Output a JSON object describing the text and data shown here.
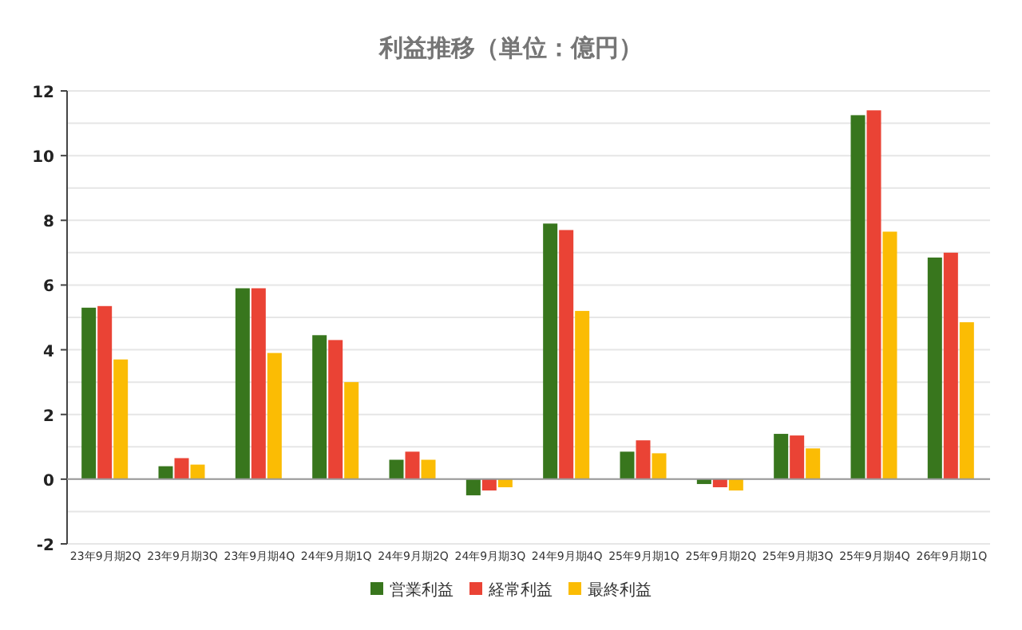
{
  "chart_data": {
    "type": "bar",
    "title": "利益推移（単位：億円）",
    "categories": [
      "23年9月期2Q",
      "23年9月期3Q",
      "23年9月期4Q",
      "24年9月期1Q",
      "24年9月期2Q",
      "24年9月期3Q",
      "24年9月期4Q",
      "25年9月期1Q",
      "25年9月期2Q",
      "25年9月期3Q",
      "25年9月期4Q",
      "26年9月期1Q"
    ],
    "series": [
      {
        "name": "営業利益",
        "color": "#38761d",
        "values": [
          5.3,
          0.4,
          5.9,
          4.45,
          0.6,
          -0.5,
          7.9,
          0.85,
          -0.15,
          1.4,
          11.25,
          6.85
        ]
      },
      {
        "name": "経常利益",
        "color": "#ea4335",
        "values": [
          5.35,
          0.65,
          5.9,
          4.3,
          0.85,
          -0.35,
          7.7,
          1.2,
          -0.25,
          1.35,
          11.4,
          7.0
        ]
      },
      {
        "name": "最終利益",
        "color": "#fbbc04",
        "values": [
          3.7,
          0.45,
          3.9,
          3.0,
          0.6,
          -0.25,
          5.2,
          0.8,
          -0.35,
          0.95,
          7.65,
          4.85
        ]
      }
    ],
    "ylim": [
      -2,
      12
    ],
    "yticks": [
      -2,
      {
        "value": -1,
        "label": null
      },
      0,
      {
        "value": 1,
        "label": null
      },
      2,
      {
        "value": 3,
        "label": null
      },
      4,
      {
        "value": 5,
        "label": null
      },
      6,
      {
        "value": 7,
        "label": null
      },
      8,
      {
        "value": 9,
        "label": null
      },
      10,
      {
        "value": 11,
        "label": null
      },
      12
    ],
    "grid": "y",
    "legend": "bottom"
  }
}
